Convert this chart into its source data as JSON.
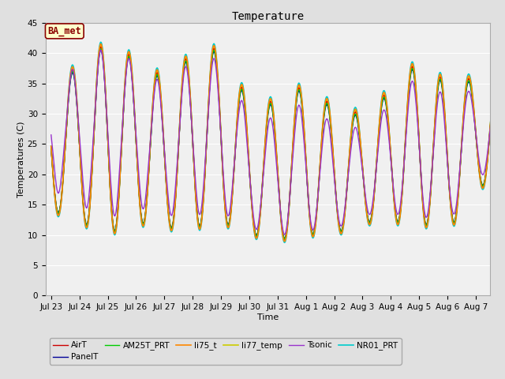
{
  "title": "Temperature",
  "xlabel": "Time",
  "ylabel": "Temperatures (C)",
  "ylim": [
    0,
    45
  ],
  "yticks": [
    0,
    5,
    10,
    15,
    20,
    25,
    30,
    35,
    40,
    45
  ],
  "annotation": "BA_met",
  "annotation_color": "#8B0000",
  "annotation_bg": "#FFFFCC",
  "annotation_border": "#8B0000",
  "series": {
    "AirT": {
      "color": "#CC0000",
      "lw": 1.0,
      "zorder": 5
    },
    "PanelT": {
      "color": "#000099",
      "lw": 1.0,
      "zorder": 5
    },
    "AM25T_PRT": {
      "color": "#00CC00",
      "lw": 1.0,
      "zorder": 5
    },
    "li75_t": {
      "color": "#FF8800",
      "lw": 1.2,
      "zorder": 6
    },
    "li77_temp": {
      "color": "#CCCC00",
      "lw": 1.2,
      "zorder": 4
    },
    "Tsonic": {
      "color": "#9933CC",
      "lw": 1.0,
      "zorder": 7
    },
    "NR01_PRT": {
      "color": "#00CCCC",
      "lw": 1.2,
      "zorder": 3
    }
  },
  "bg_color": "#E0E0E0",
  "plot_bg": "#F0F0F0",
  "grid_color": "#FFFFFF",
  "days_labels": [
    "Jul 23",
    "Jul 24",
    "Jul 25",
    "Jul 26",
    "Jul 27",
    "Jul 28",
    "Jul 29",
    "Jul 30",
    "Jul 31",
    "Aug 1",
    "Aug 2",
    "Aug 3",
    "Aug 4",
    "Aug 5",
    "Aug 6",
    "Aug 7"
  ],
  "peak_temps": [
    35,
    38,
    42,
    39,
    36,
    40,
    41,
    32,
    32,
    35,
    31,
    30,
    34,
    39,
    35,
    36
  ],
  "min_temps": [
    14,
    12,
    10,
    12,
    11,
    11,
    12,
    10,
    9,
    10,
    10,
    12,
    12,
    12,
    10,
    18
  ],
  "tsonic_offset": [
    2,
    1.5,
    1,
    1,
    0.5,
    0.5,
    0,
    -0.5,
    -1,
    -1,
    -1,
    -0.5,
    -0.5,
    -0.5,
    -0.5,
    0
  ]
}
